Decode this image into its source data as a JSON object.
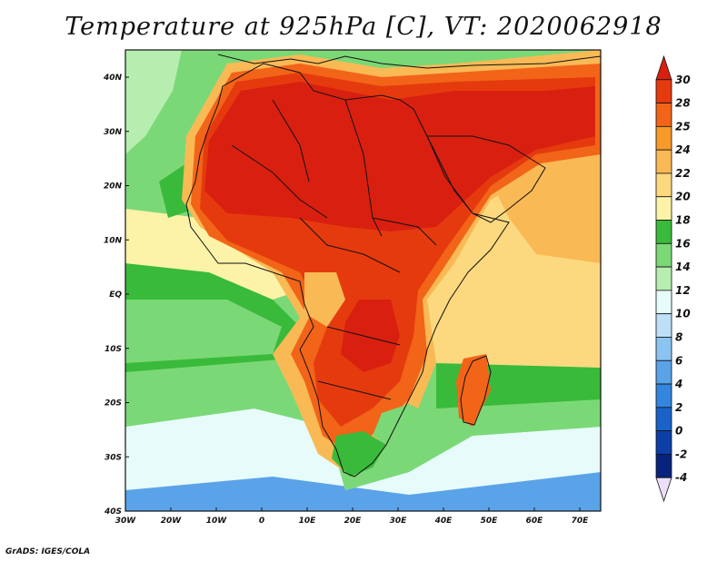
{
  "title": "Temperature at 925hPa [C], VT: 2020062918",
  "credit": "GrADS: IGES/COLA",
  "map": {
    "region": "Africa and surrounding oceans",
    "variable": "Temperature at 925hPa",
    "units": "C",
    "valid_time": "2020062918",
    "lat_labels": [
      "40N",
      "30N",
      "20N",
      "10N",
      "EQ",
      "10S",
      "20S",
      "30S",
      "40S"
    ],
    "lon_labels": [
      "30W",
      "20W",
      "10W",
      "0",
      "10E",
      "20E",
      "30E",
      "40E",
      "50E",
      "60E",
      "70E"
    ]
  },
  "colorbar": {
    "labels": [
      "30",
      "28",
      "25",
      "24",
      "22",
      "20",
      "18",
      "16",
      "14",
      "12",
      "10",
      "8",
      "6",
      "4",
      "2",
      "0",
      "-2",
      "-4"
    ],
    "colors": [
      "#d92010",
      "#e53a0e",
      "#f26418",
      "#f79a2a",
      "#f9b955",
      "#fcd97f",
      "#fcf3a8",
      "#3aba3a",
      "#7bd877",
      "#b6eeb0",
      "#e6fbfa",
      "#bde0f7",
      "#8bc3f1",
      "#5aa3e9",
      "#3485dd",
      "#1a62c8",
      "#0c3fa7",
      "#08237d",
      "#eae0fb"
    ]
  }
}
